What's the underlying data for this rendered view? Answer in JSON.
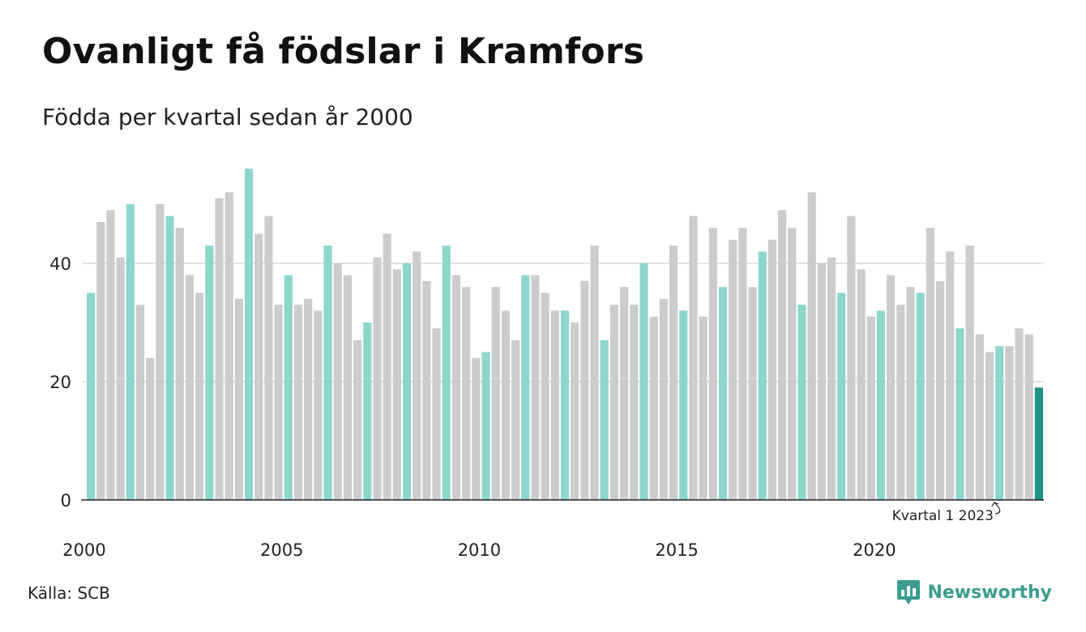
{
  "title": "Ovanligt få födslar i Kramfors",
  "subtitle": "Födda per kvartal sedan år 2000",
  "source": "Källa: SCB",
  "brand": {
    "name": "Newsworthy",
    "icon": "newsworthy-logo-icon",
    "color": "#3a9d8f"
  },
  "colors": {
    "quarter1": "#8dd6cd",
    "other": "#cccccc",
    "latest": "#1f9384",
    "grid": "#e3e3e3",
    "axis": "#222222"
  },
  "chart_data": {
    "type": "bar",
    "start_year": 2000,
    "quarters_per_year": 4,
    "values": [
      35,
      47,
      49,
      41,
      50,
      33,
      24,
      50,
      48,
      46,
      38,
      35,
      43,
      51,
      52,
      34,
      56,
      45,
      48,
      33,
      38,
      33,
      34,
      32,
      43,
      40,
      38,
      27,
      30,
      41,
      45,
      39,
      40,
      42,
      37,
      29,
      43,
      38,
      36,
      24,
      25,
      36,
      32,
      27,
      38,
      38,
      35,
      32,
      32,
      30,
      37,
      43,
      27,
      33,
      36,
      33,
      40,
      31,
      34,
      43,
      32,
      48,
      31,
      46,
      36,
      44,
      46,
      36,
      42,
      44,
      49,
      46,
      33,
      52,
      40,
      41,
      35,
      48,
      39,
      31,
      32,
      38,
      33,
      36,
      35,
      46,
      37,
      42,
      29,
      43,
      28,
      25,
      26,
      26,
      29,
      28,
      19
    ],
    "y_ticks": [
      0,
      20,
      40
    ],
    "ylim": [
      0,
      58
    ],
    "x_ticks": [
      "2000",
      "2005",
      "2010",
      "2015",
      "2020"
    ],
    "highlight": "Kvartal 1 (turkos)",
    "annotation": "Kvartal 1 2023",
    "grid": "horizontal"
  }
}
